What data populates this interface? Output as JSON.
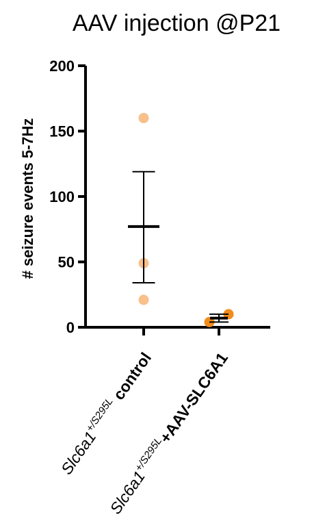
{
  "chart_data": {
    "type": "scatter",
    "title": "AAV injection @P21",
    "ylabel": "# seizure events 5-7Hz",
    "xlabel": "",
    "ylim": [
      0,
      200
    ],
    "yticks": [
      0,
      50,
      100,
      150,
      200
    ],
    "grid": false,
    "categories": [
      {
        "gene": "Slc6a1",
        "genotype": "+/S295L",
        "condition": "control",
        "color": "#f8c08a",
        "points": [
          160,
          49,
          21
        ],
        "mean": 77,
        "sem_low": 34,
        "sem_high": 119
      },
      {
        "gene": "Slc6a1",
        "genotype": "+/S295L",
        "condition": "+AAV-SLC6A1",
        "color": "#f28c1c",
        "points": [
          10,
          4
        ],
        "mean": 7,
        "sem_low": 4,
        "sem_high": 10
      }
    ]
  }
}
